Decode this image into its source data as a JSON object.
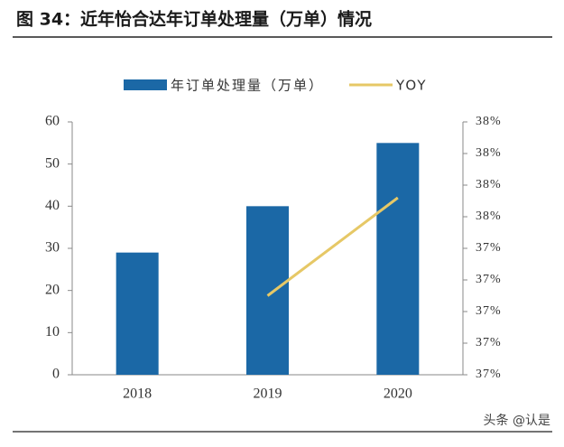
{
  "chart_data": {
    "type": "combo",
    "title": "图 34：近年怡合达年订单处理量（万单）情况",
    "categories": [
      "2018",
      "2019",
      "2020"
    ],
    "series": [
      {
        "name": "年订单处理量（万单）",
        "type": "bar",
        "color": "#1b68a6",
        "values": [
          29,
          40,
          55
        ]
      },
      {
        "name": "YOY",
        "type": "line",
        "axis": "y2",
        "color": "#e6c866",
        "values": [
          null,
          37.25,
          37.56
        ]
      }
    ],
    "ylim": [
      0,
      60
    ],
    "yticks": [
      0,
      10,
      20,
      30,
      40,
      50,
      60
    ],
    "y2lim": [
      37.0,
      37.8
    ],
    "y2ticks": [
      {
        "value": 37.0,
        "label": "37%"
      },
      {
        "value": 37.1,
        "label": "37%"
      },
      {
        "value": 37.2,
        "label": "37%"
      },
      {
        "value": 37.3,
        "label": "37%"
      },
      {
        "value": 37.4,
        "label": "37%"
      },
      {
        "value": 37.5,
        "label": "38%"
      },
      {
        "value": 37.6,
        "label": "38%"
      },
      {
        "value": 37.7,
        "label": "38%"
      },
      {
        "value": 37.8,
        "label": "38%"
      }
    ],
    "legend": "top",
    "grid": false
  },
  "watermark": "头条 @认是"
}
